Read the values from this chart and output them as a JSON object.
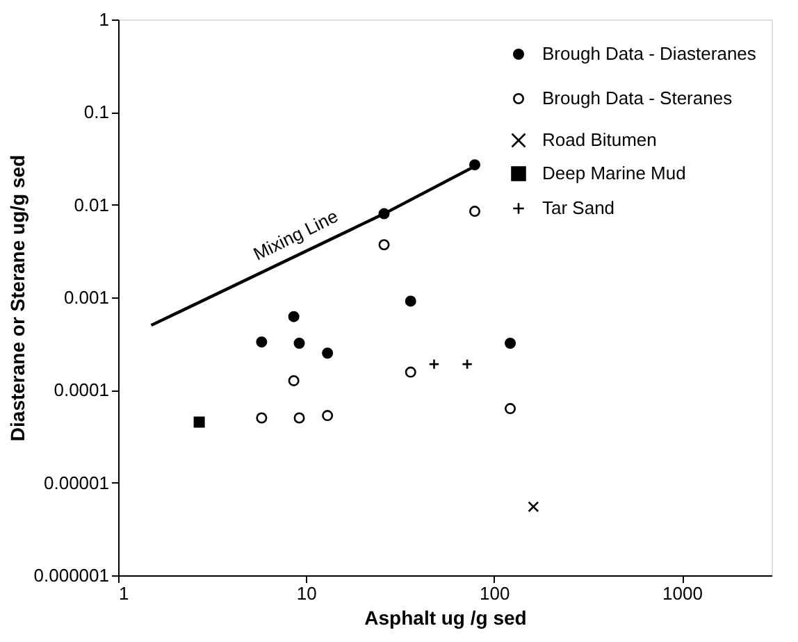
{
  "chart_data": {
    "type": "scatter",
    "xlabel": "Asphalt ug /g sed",
    "ylabel": "Diasterane or Sterane ug/g sed",
    "log": "xy",
    "grid": false,
    "legend": "top right",
    "xlim": [
      1,
      3000
    ],
    "xticks": [
      1,
      10,
      100,
      1000
    ],
    "ylim": [
      1e-06,
      1
    ],
    "yticks": [
      {
        "value": 1e-06,
        "label": "0.000001"
      },
      {
        "value": 1e-05,
        "label": "0.00001"
      },
      0.0001,
      0.001,
      0.01,
      0.1,
      1
    ],
    "series": [
      {
        "name": "Brough Data - Diasteranes",
        "color": "#000000",
        "marker": "circle",
        "x": [
          5.8,
          8.6,
          9.2,
          13,
          26,
          36,
          79,
          122
        ],
        "values": [
          0.00033,
          0.00062,
          0.00032,
          0.00025,
          0.008,
          0.00091,
          0.027,
          0.00032
        ]
      },
      {
        "name": "Brough Data - Steranes",
        "color": "#ffffff",
        "marker": "circle",
        "x": [
          5.8,
          8.6,
          9.2,
          13,
          26,
          36,
          79,
          122
        ],
        "values": [
          5e-05,
          0.000126,
          5e-05,
          5.3e-05,
          0.0037,
          0.000156,
          0.0085,
          6.3e-05
        ]
      },
      {
        "name": "Road Bitumen",
        "color": "#000000",
        "marker": "x",
        "x": [
          162
        ],
        "values": [
          5.5e-06
        ]
      },
      {
        "name": "Deep Marine Mud",
        "color": "#000000",
        "marker": "square",
        "x": [
          2.7
        ],
        "values": [
          4.5e-05
        ]
      },
      {
        "name": "Tar Sand",
        "color": "#000000",
        "marker": "cross",
        "x": [
          48,
          72
        ],
        "values": [
          0.00019,
          0.00019
        ]
      },
      {
        "name": "Mixing Line",
        "type": "line",
        "color": "#000000",
        "line_style": "solid",
        "x": [
          1.5,
          26,
          79
        ],
        "values": [
          0.0005,
          0.008,
          0.026
        ]
      }
    ]
  }
}
